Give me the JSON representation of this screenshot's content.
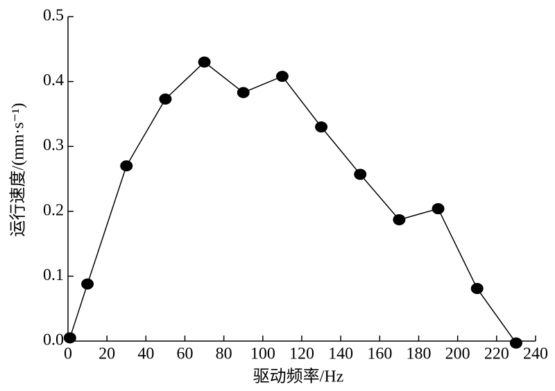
{
  "chart_data": {
    "type": "line",
    "x_label": "驱动频率/Hz",
    "y_label": "运行速度/(mm·s⁻¹)",
    "x": [
      1,
      10,
      30,
      50,
      70,
      90,
      110,
      130,
      150,
      170,
      190,
      210,
      230
    ],
    "series": [
      {
        "color": "#000000",
        "values": [
          0.005,
          0.088,
          0.27,
          0.373,
          0.43,
          0.383,
          0.408,
          0.33,
          0.257,
          0.187,
          0.204,
          0.081,
          -0.003
        ]
      }
    ],
    "xlim": [
      0,
      240
    ],
    "xticks": [
      0,
      20,
      40,
      60,
      80,
      100,
      120,
      140,
      160,
      180,
      200,
      220,
      240
    ],
    "ylim": [
      0,
      0.5
    ],
    "yticks": [
      {
        "value": 0,
        "label": "0.0"
      },
      0.1,
      0.2,
      0.3,
      0.4,
      0.5
    ],
    "grid": false,
    "markers": true
  }
}
